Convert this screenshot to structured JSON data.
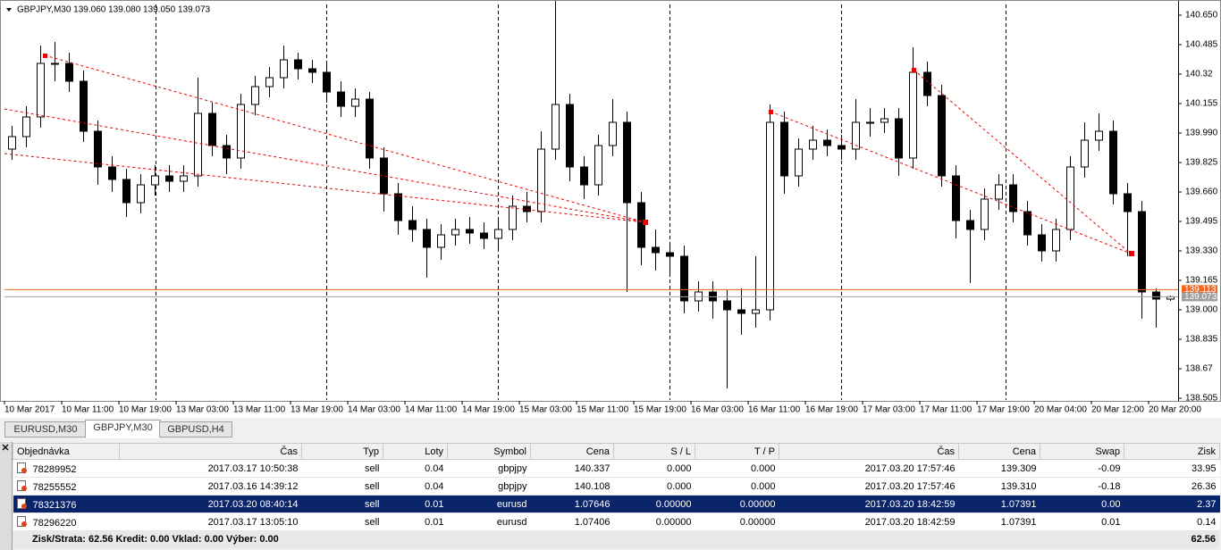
{
  "chart_data": {
    "type": "candlestick",
    "title": "GBPJPY,M30  139.060 139.080 139.050 139.073",
    "categories": [
      "10 Mar 2017",
      null,
      null,
      null,
      "10 Mar 11:00",
      null,
      null,
      null,
      "10 Mar 19:00",
      null,
      null,
      null,
      "13 Mar 03:00",
      null,
      null,
      null,
      "13 Mar 11:00",
      null,
      null,
      null,
      "13 Mar 19:00",
      null,
      null,
      null,
      "14 Mar 03:00",
      null,
      null,
      null,
      "14 Mar 11:00",
      null,
      null,
      null,
      "14 Mar 19:00",
      null,
      null,
      null,
      "15 Mar 03:00",
      null,
      null,
      null,
      "15 Mar 11:00",
      null,
      null,
      null,
      "15 Mar 19:00",
      null,
      null,
      null,
      "16 Mar 03:00",
      null,
      null,
      null,
      "16 Mar 11:00",
      null,
      null,
      null,
      "16 Mar 19:00",
      null,
      null,
      null,
      "17 Mar 03:00",
      null,
      null,
      null,
      "17 Mar 11:00",
      null,
      null,
      null,
      "17 Mar 19:00",
      null,
      null,
      null,
      "20 Mar 04:00",
      null,
      null,
      null,
      "20 Mar 12:00",
      null,
      null,
      null,
      "20 Mar 20:00",
      null
    ],
    "open": [
      139.9,
      139.97,
      140.08,
      140.38,
      140.38,
      140.28,
      140.0,
      139.8,
      139.73,
      139.6,
      139.7,
      139.75,
      139.72,
      139.75,
      140.1,
      139.92,
      139.85,
      140.15,
      140.25,
      140.3,
      140.4,
      140.35,
      140.33,
      140.22,
      140.14,
      140.18,
      139.85,
      139.65,
      139.5,
      139.45,
      139.35,
      139.42,
      139.45,
      139.43,
      139.4,
      139.45,
      139.58,
      139.55,
      139.9,
      140.15,
      139.8,
      139.7,
      139.92,
      140.05,
      139.6,
      139.35,
      139.32,
      139.3,
      139.05,
      139.1,
      139.05,
      139.0,
      138.98,
      139.0,
      140.05,
      139.75,
      139.9,
      139.95,
      139.92,
      139.9,
      140.05,
      140.05,
      140.07,
      139.85,
      140.33,
      140.2,
      139.75,
      139.5,
      139.45,
      139.62,
      139.7,
      139.55,
      139.42,
      139.33,
      139.45,
      139.8,
      139.95,
      140.0,
      139.65,
      139.55,
      139.1,
      139.06
    ],
    "high": [
      140.03,
      140.14,
      140.48,
      140.5,
      140.44,
      140.34,
      140.06,
      139.86,
      139.79,
      139.76,
      139.81,
      139.81,
      139.81,
      140.3,
      140.16,
      139.98,
      140.21,
      140.31,
      140.36,
      140.48,
      140.44,
      140.4,
      140.39,
      140.28,
      140.24,
      140.22,
      139.91,
      139.71,
      139.58,
      139.51,
      139.48,
      139.51,
      139.52,
      139.49,
      139.51,
      139.64,
      139.66,
      140.0,
      140.82,
      140.21,
      139.86,
      139.98,
      140.18,
      140.11,
      139.66,
      139.45,
      139.38,
      139.36,
      139.16,
      139.16,
      139.11,
      139.12,
      139.3,
      140.15,
      140.11,
      139.96,
      140.03,
      140.01,
      139.98,
      140.18,
      140.13,
      140.13,
      140.13,
      140.47,
      140.39,
      140.26,
      139.81,
      139.56,
      139.68,
      139.76,
      139.76,
      139.61,
      139.48,
      139.51,
      139.86,
      140.05,
      140.1,
      140.06,
      139.71,
      139.61,
      139.12,
      139.08
    ],
    "low": [
      139.84,
      139.91,
      140.02,
      140.28,
      140.22,
      139.94,
      139.7,
      139.66,
      139.52,
      139.54,
      139.64,
      139.66,
      139.66,
      139.69,
      139.86,
      139.76,
      139.79,
      140.09,
      140.19,
      140.24,
      140.29,
      140.27,
      140.16,
      140.08,
      140.08,
      139.79,
      139.55,
      139.42,
      139.38,
      139.18,
      139.28,
      139.36,
      139.37,
      139.34,
      139.34,
      139.39,
      139.49,
      139.49,
      139.84,
      139.72,
      139.62,
      139.64,
      139.86,
      139.1,
      139.25,
      139.22,
      139.2,
      138.98,
      138.99,
      138.95,
      138.56,
      138.86,
      138.9,
      138.94,
      139.65,
      139.69,
      139.84,
      139.86,
      139.84,
      139.84,
      139.97,
      139.99,
      139.75,
      139.79,
      140.14,
      139.69,
      139.4,
      139.15,
      139.39,
      139.56,
      139.49,
      139.36,
      139.27,
      139.27,
      139.39,
      139.74,
      139.89,
      139.59,
      139.3,
      138.95,
      138.9,
      139.05
    ],
    "close": [
      139.97,
      140.08,
      140.38,
      140.38,
      140.28,
      140.0,
      139.8,
      139.73,
      139.6,
      139.7,
      139.75,
      139.72,
      139.75,
      140.1,
      139.92,
      139.85,
      140.15,
      140.25,
      140.3,
      140.4,
      140.35,
      140.33,
      140.22,
      140.14,
      140.18,
      139.85,
      139.65,
      139.5,
      139.45,
      139.35,
      139.42,
      139.45,
      139.43,
      139.4,
      139.45,
      139.58,
      139.55,
      139.9,
      140.15,
      139.8,
      139.7,
      139.92,
      140.05,
      139.6,
      139.35,
      139.32,
      139.3,
      139.05,
      139.1,
      139.05,
      139.0,
      138.98,
      139.0,
      140.05,
      139.75,
      139.9,
      139.95,
      139.92,
      139.9,
      140.05,
      140.05,
      140.07,
      139.85,
      140.33,
      140.2,
      139.75,
      139.5,
      139.45,
      139.62,
      139.7,
      139.55,
      139.42,
      139.33,
      139.45,
      139.8,
      139.95,
      140.0,
      139.65,
      139.55,
      139.1,
      139.06,
      139.073
    ],
    "ylim": [
      138.495,
      140.71
    ],
    "yticks": [
      {
        "value": 140.65,
        "label": "140.650"
      },
      140.485,
      140.32,
      140.155,
      {
        "value": 139.99,
        "label": "139.990"
      },
      139.825,
      {
        "value": 139.66,
        "label": "139.660"
      },
      139.495,
      {
        "value": 139.33,
        "label": "139.330"
      },
      139.165,
      {
        "value": 139.0,
        "label": "139.000"
      },
      138.835,
      138.67,
      138.505
    ],
    "price_lines": [
      {
        "value": 139.113,
        "color": "#f26522"
      },
      {
        "value": 139.073,
        "color": "#a0a0a0"
      }
    ]
  },
  "tabs": [
    "EURUSD,M30",
    "GBPJPY,M30",
    "GBPUSD,H4"
  ],
  "active_tab": 1,
  "table": {
    "header": [
      "Objednávka",
      "Čas",
      "Typ",
      "Loty",
      "Symbol",
      "Cena",
      "S / L",
      "T / P",
      "Čas",
      "Cena",
      "Swap",
      "Zisk"
    ],
    "rows": [
      [
        "78289952",
        "2017.03.17 10:50:38",
        "sell",
        "0.04",
        "gbpjpy",
        "140.337",
        "0.000",
        "0.000",
        "2017.03.20 17:57:46",
        "139.309",
        "-0.09",
        "33.95"
      ],
      [
        "78255552",
        "2017.03.16 14:39:12",
        "sell",
        "0.04",
        "gbpjpy",
        "140.108",
        "0.000",
        "0.000",
        "2017.03.20 17:57:46",
        "139.310",
        "-0.18",
        "26.36"
      ],
      [
        "78321376",
        "2017.03.20 08:40:14",
        "sell",
        "0.01",
        "eurusd",
        "1.07646",
        "0.00000",
        "0.00000",
        "2017.03.20 18:42:59",
        "1.07391",
        "0.00",
        "2.37"
      ],
      [
        "78296220",
        "2017.03.17 13:05:10",
        "sell",
        "0.01",
        "eurusd",
        "1.07406",
        "0.00000",
        "0.00000",
        "2017.03.20 18:42:59",
        "1.07391",
        "0.01",
        "0.14"
      ]
    ],
    "selected_row": 2
  },
  "footer": {
    "summary": "Zisk/Strata: 62.56  Kredit: 0.00  Vklad: 0.00  Výber: 0.00",
    "total": "62.56"
  }
}
